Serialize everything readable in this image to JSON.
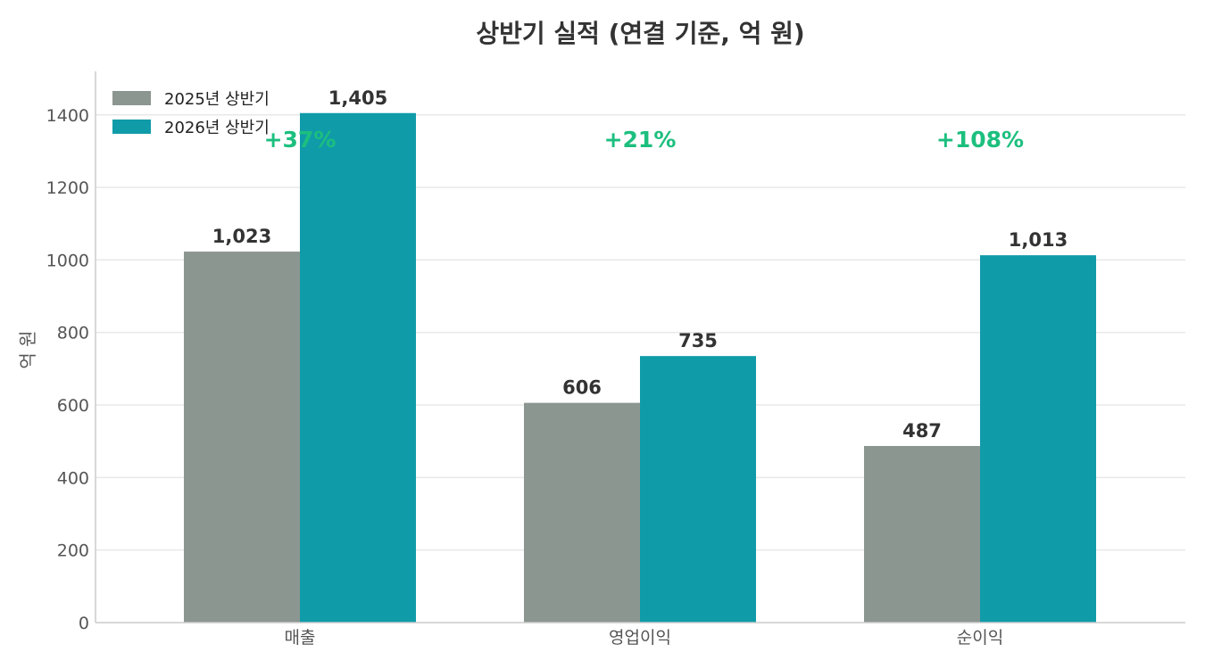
{
  "chart_data": {
    "type": "bar",
    "title": "상반기 실적 (연결 기준, 억 원)",
    "xlabel": "",
    "ylabel": "억 원",
    "categories": [
      "매출",
      "영업이익",
      "순이익"
    ],
    "series": [
      {
        "name": "2025년 상반기",
        "values": [
          1023,
          606,
          487
        ],
        "labels": [
          "1,023",
          "606",
          "487"
        ],
        "color": "#8c9690"
      },
      {
        "name": "2026년 상반기",
        "values": [
          1405,
          735,
          1013
        ],
        "labels": [
          "1,405",
          "735",
          "1,013"
        ],
        "color": "#109ba8"
      }
    ],
    "growth": [
      "+37%",
      "+21%",
      "+108%"
    ],
    "growth_color": "#1cbf7e",
    "ylim": [
      0,
      1520
    ],
    "yticks": [
      0,
      200,
      400,
      600,
      800,
      1000,
      1200,
      1400
    ],
    "grid": true,
    "legend_position": "top-left"
  }
}
